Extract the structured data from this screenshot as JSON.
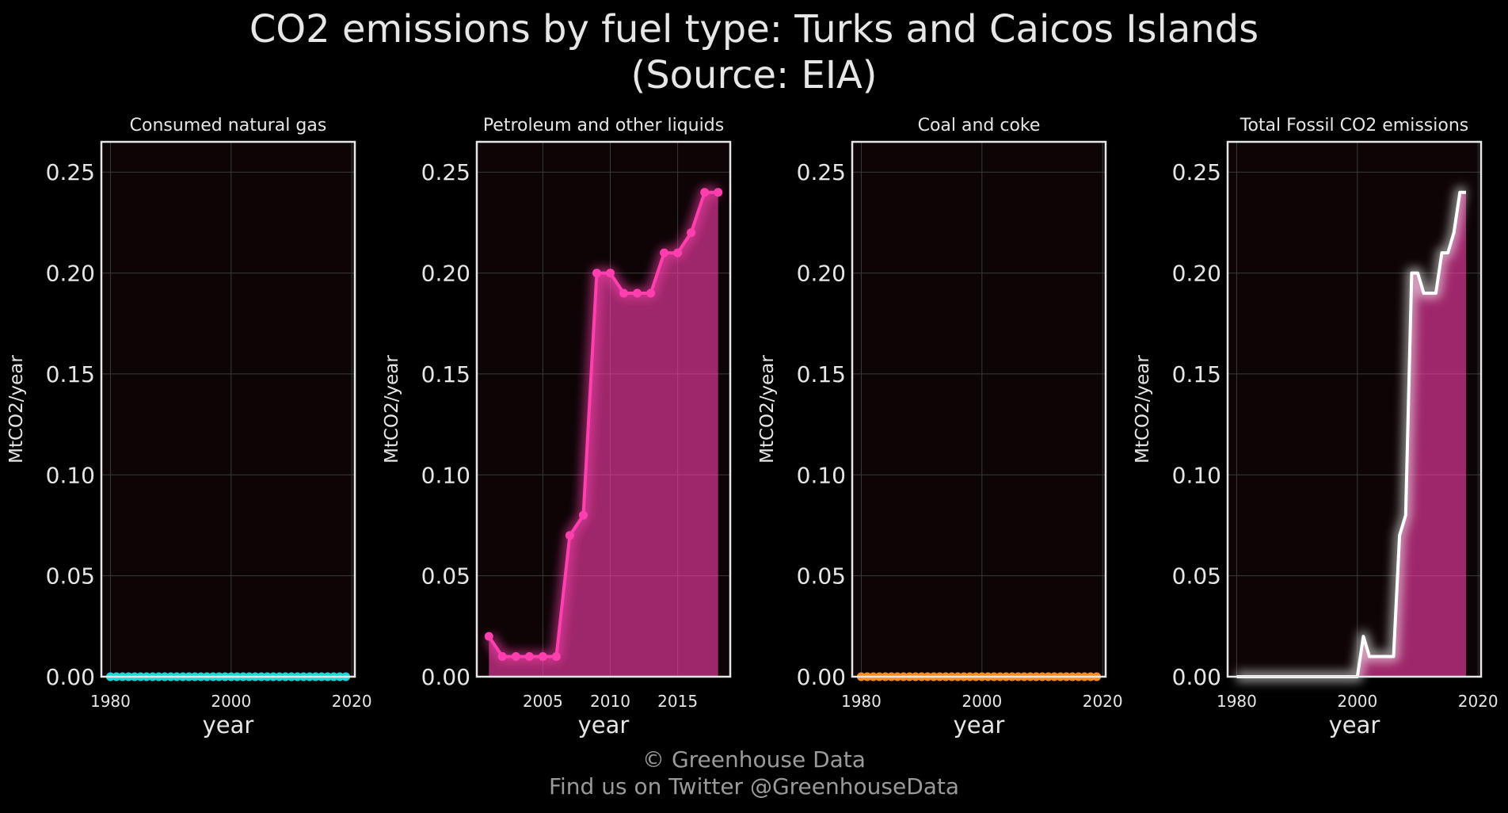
{
  "title_line1": "CO2 emissions by fuel type: Turks and Caicos Islands",
  "title_line2": "(Source: EIA)",
  "footer": {
    "line1": "© Greenhouse Data",
    "line2": "Find us on Twitter @GreenhouseData"
  },
  "chart_data": [
    {
      "type": "area",
      "title": "Consumed natural gas",
      "xlabel": "year",
      "ylabel": "MtCO2/year",
      "xlim": [
        1978.5,
        2020.5
      ],
      "ylim": [
        0,
        0.265
      ],
      "xticks": [
        1980,
        2000,
        2020
      ],
      "yticks": [
        "0.00",
        "0.05",
        "0.10",
        "0.15",
        "0.20",
        "0.25"
      ],
      "grid": true,
      "color": "#19d8d8",
      "fill": false,
      "glow": false,
      "markers": true,
      "x": [
        1980,
        1981,
        1982,
        1983,
        1984,
        1985,
        1986,
        1987,
        1988,
        1989,
        1990,
        1991,
        1992,
        1993,
        1994,
        1995,
        1996,
        1997,
        1998,
        1999,
        2000,
        2001,
        2002,
        2003,
        2004,
        2005,
        2006,
        2007,
        2008,
        2009,
        2010,
        2011,
        2012,
        2013,
        2014,
        2015,
        2016,
        2017,
        2018,
        2019
      ],
      "values": [
        0,
        0,
        0,
        0,
        0,
        0,
        0,
        0,
        0,
        0,
        0,
        0,
        0,
        0,
        0,
        0,
        0,
        0,
        0,
        0,
        0,
        0,
        0,
        0,
        0,
        0,
        0,
        0,
        0,
        0,
        0,
        0,
        0,
        0,
        0,
        0,
        0,
        0,
        0,
        0
      ]
    },
    {
      "type": "area",
      "title": "Petroleum and other liquids",
      "xlabel": "year",
      "ylabel": "MtCO2/year",
      "xlim": [
        2000.1,
        2018.9
      ],
      "ylim": [
        0,
        0.265
      ],
      "xticks": [
        2005,
        2010,
        2015
      ],
      "yticks": [
        "0.00",
        "0.05",
        "0.10",
        "0.15",
        "0.20",
        "0.25"
      ],
      "grid": true,
      "color": "#ff3fae",
      "fill": true,
      "glow": true,
      "markers": true,
      "x": [
        2001,
        2002,
        2003,
        2004,
        2005,
        2006,
        2007,
        2008,
        2009,
        2010,
        2011,
        2012,
        2013,
        2014,
        2015,
        2016,
        2017,
        2018
      ],
      "values": [
        0.02,
        0.01,
        0.01,
        0.01,
        0.01,
        0.01,
        0.07,
        0.08,
        0.2,
        0.2,
        0.19,
        0.19,
        0.19,
        0.21,
        0.21,
        0.22,
        0.24,
        0.24
      ]
    },
    {
      "type": "area",
      "title": "Coal and coke",
      "xlabel": "year",
      "ylabel": "MtCO2/year",
      "xlim": [
        1978.5,
        2020.5
      ],
      "ylim": [
        0,
        0.265
      ],
      "xticks": [
        1980,
        2000,
        2020
      ],
      "yticks": [
        "0.00",
        "0.05",
        "0.10",
        "0.15",
        "0.20",
        "0.25"
      ],
      "grid": true,
      "color": "#ff8a1f",
      "fill": false,
      "glow": false,
      "markers": true,
      "x": [
        1980,
        1981,
        1982,
        1983,
        1984,
        1985,
        1986,
        1987,
        1988,
        1989,
        1990,
        1991,
        1992,
        1993,
        1994,
        1995,
        1996,
        1997,
        1998,
        1999,
        2000,
        2001,
        2002,
        2003,
        2004,
        2005,
        2006,
        2007,
        2008,
        2009,
        2010,
        2011,
        2012,
        2013,
        2014,
        2015,
        2016,
        2017,
        2018,
        2019
      ],
      "values": [
        0,
        0,
        0,
        0,
        0,
        0,
        0,
        0,
        0,
        0,
        0,
        0,
        0,
        0,
        0,
        0,
        0,
        0,
        0,
        0,
        0,
        0,
        0,
        0,
        0,
        0,
        0,
        0,
        0,
        0,
        0,
        0,
        0,
        0,
        0,
        0,
        0,
        0,
        0,
        0
      ]
    },
    {
      "type": "area",
      "title": "Total Fossil CO2 emissions",
      "xlabel": "year",
      "ylabel": "MtCO2/year",
      "xlim": [
        1978.5,
        2020.5
      ],
      "ylim": [
        0,
        0.265
      ],
      "xticks": [
        1980,
        2000,
        2020
      ],
      "yticks": [
        "0.00",
        "0.05",
        "0.10",
        "0.15",
        "0.20",
        "0.25"
      ],
      "grid": true,
      "color": "#ffffff",
      "fill_color": "#ff3fae",
      "fill": true,
      "glow": true,
      "markers": false,
      "x": [
        1980,
        1981,
        1982,
        1983,
        1984,
        1985,
        1986,
        1987,
        1988,
        1989,
        1990,
        1991,
        1992,
        1993,
        1994,
        1995,
        1996,
        1997,
        1998,
        1999,
        2000,
        2001,
        2002,
        2003,
        2004,
        2005,
        2006,
        2007,
        2008,
        2009,
        2010,
        2011,
        2012,
        2013,
        2014,
        2015,
        2016,
        2017,
        2018
      ],
      "values": [
        0,
        0,
        0,
        0,
        0,
        0,
        0,
        0,
        0,
        0,
        0,
        0,
        0,
        0,
        0,
        0,
        0,
        0,
        0,
        0,
        0,
        0.02,
        0.01,
        0.01,
        0.01,
        0.01,
        0.01,
        0.07,
        0.08,
        0.2,
        0.2,
        0.19,
        0.19,
        0.19,
        0.21,
        0.21,
        0.22,
        0.24,
        0.24
      ]
    }
  ]
}
